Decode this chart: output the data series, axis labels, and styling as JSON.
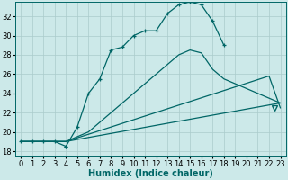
{
  "xlabel": "Humidex (Indice chaleur)",
  "xlim": [
    -0.5,
    23.5
  ],
  "ylim": [
    17.5,
    33.5
  ],
  "xticks": [
    0,
    1,
    2,
    3,
    4,
    5,
    6,
    7,
    8,
    9,
    10,
    11,
    12,
    13,
    14,
    15,
    16,
    17,
    18,
    19,
    20,
    21,
    22,
    23
  ],
  "yticks": [
    18,
    20,
    22,
    24,
    26,
    28,
    30,
    32
  ],
  "bg_color": "#cce9e9",
  "grid_color": "#aacccc",
  "line_color": "#006666",
  "line1_x": [
    0,
    1,
    2,
    3,
    4,
    4,
    5,
    6,
    7,
    8,
    9,
    10,
    11,
    12,
    13,
    14,
    15,
    15,
    16,
    17,
    18
  ],
  "line1_y": [
    19,
    19,
    19,
    19,
    18.5,
    18.5,
    20.5,
    24,
    25.5,
    28.5,
    28.8,
    30,
    30.5,
    30.5,
    32.3,
    33.2,
    33.5,
    33.5,
    33.2,
    31.5,
    29
  ],
  "line2_x": [
    0,
    4,
    5,
    6,
    7,
    8,
    9,
    10,
    11,
    12,
    13,
    14,
    15,
    16,
    17,
    18,
    19,
    20,
    21,
    22,
    23
  ],
  "line2_y": [
    19,
    19,
    19.5,
    20,
    21,
    22,
    23,
    24,
    25,
    26,
    27,
    28,
    28.5,
    28.2,
    26.5,
    25.5,
    25,
    24.5,
    24,
    23.5,
    23
  ],
  "line3_x": [
    0,
    4,
    23
  ],
  "line3_y": [
    19,
    19,
    23
  ],
  "line4_x": [
    0,
    4,
    22,
    23
  ],
  "line4_y": [
    19,
    19,
    25.8,
    22.5
  ],
  "triangle_x": 22.5,
  "triangle_y": 22.5,
  "font_size_xlabel": 7,
  "tick_fontsize": 6
}
